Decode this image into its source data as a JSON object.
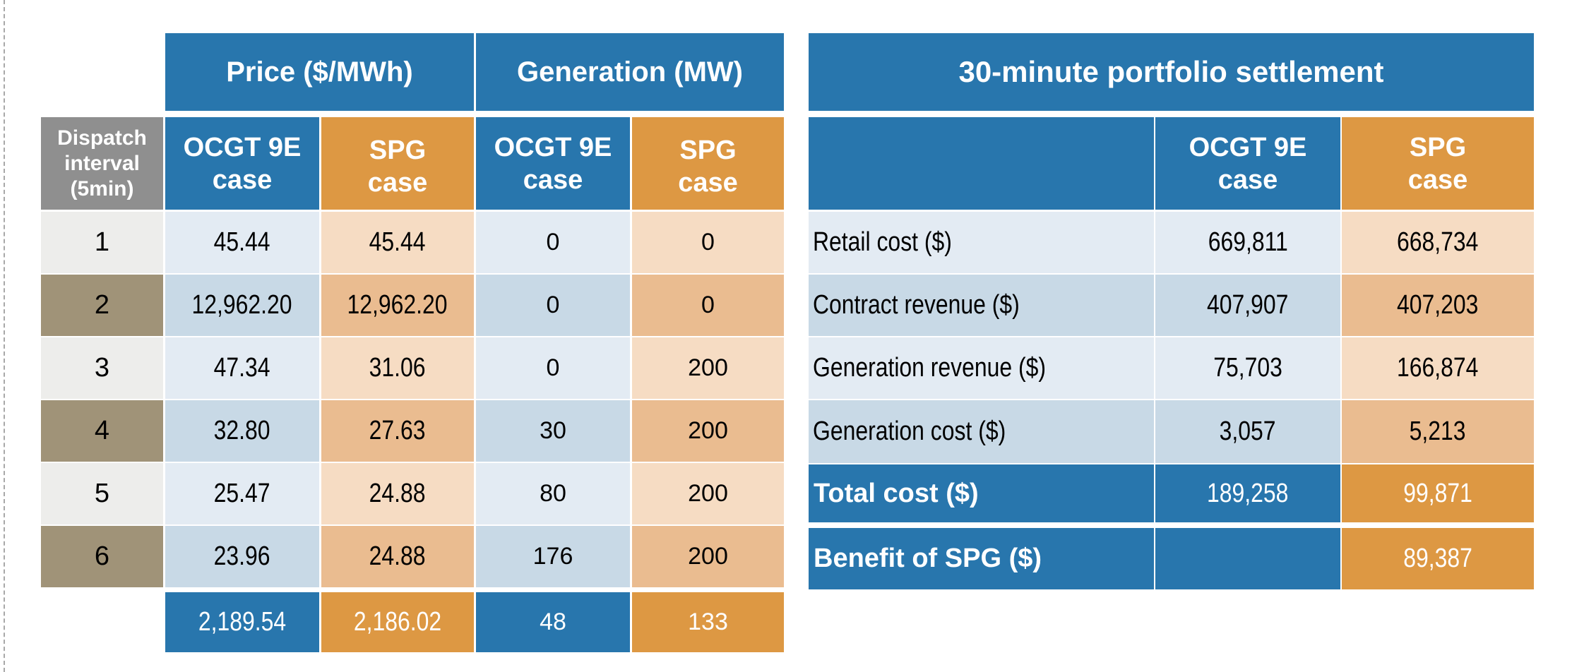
{
  "colors": {
    "blue": "#2876ad",
    "orange": "#dd9843",
    "light_blue_a": "#e3ebf3",
    "light_blue_b": "#c8d9e6",
    "light_orange_a": "#f6dcc3",
    "light_orange_b": "#eabc90",
    "grey_a": "#ededeb",
    "grey_b": "#a09378",
    "header_grey": "#8f8f8f"
  },
  "dispatch_table": {
    "group_headers": {
      "price": "Price ($/MWh)",
      "generation": "Generation (MW)"
    },
    "column_headers": {
      "interval": [
        "Dispatch",
        "interval",
        "(5min)"
      ],
      "price_ocgt": [
        "OCGT 9E",
        "case"
      ],
      "price_spg": [
        "SPG",
        "case"
      ],
      "gen_ocgt": [
        "OCGT 9E",
        "case"
      ],
      "gen_spg": [
        "SPG",
        "case"
      ]
    },
    "rows": [
      {
        "interval": "1",
        "price_ocgt": "45.44",
        "price_spg": "45.44",
        "gen_ocgt": "0",
        "gen_spg": "0"
      },
      {
        "interval": "2",
        "price_ocgt": "12,962.20",
        "price_spg": "12,962.20",
        "gen_ocgt": "0",
        "gen_spg": "0"
      },
      {
        "interval": "3",
        "price_ocgt": "47.34",
        "price_spg": "31.06",
        "gen_ocgt": "0",
        "gen_spg": "200"
      },
      {
        "interval": "4",
        "price_ocgt": "32.80",
        "price_spg": "27.63",
        "gen_ocgt": "30",
        "gen_spg": "200"
      },
      {
        "interval": "5",
        "price_ocgt": "25.47",
        "price_spg": "24.88",
        "gen_ocgt": "80",
        "gen_spg": "200"
      },
      {
        "interval": "6",
        "price_ocgt": "23.96",
        "price_spg": "24.88",
        "gen_ocgt": "176",
        "gen_spg": "200"
      }
    ],
    "summary": {
      "price_ocgt": "2,189.54",
      "price_spg": "2,186.02",
      "gen_ocgt": "48",
      "gen_spg": "133"
    }
  },
  "settlement_table": {
    "title": "30-minute portfolio settlement",
    "column_headers": {
      "ocgt": [
        "OCGT 9E",
        "case"
      ],
      "spg": [
        "SPG",
        "case"
      ]
    },
    "rows": [
      {
        "label": "Retail cost ($)",
        "ocgt": "669,811",
        "spg": "668,734"
      },
      {
        "label": "Contract revenue ($)",
        "ocgt": "407,907",
        "spg": "407,203"
      },
      {
        "label": "Generation revenue ($)",
        "ocgt": "75,703",
        "spg": "166,874"
      },
      {
        "label": "Generation cost ($)",
        "ocgt": "3,057",
        "spg": "5,213"
      }
    ],
    "total": {
      "label": "Total cost ($)",
      "ocgt": "189,258",
      "spg": "99,871"
    },
    "benefit": {
      "label": "Benefit of SPG ($)",
      "ocgt": "",
      "spg": "89,387"
    }
  }
}
